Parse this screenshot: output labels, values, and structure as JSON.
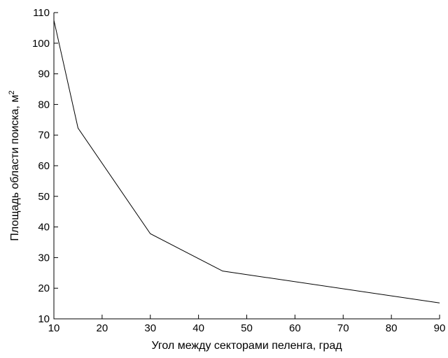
{
  "chart_data": {
    "type": "line",
    "title": "",
    "xlabel": "Угол между секторами пеленга, град",
    "ylabel_main": "Площадь области поиска, м",
    "ylabel_sup": "2",
    "xlim": [
      10,
      90
    ],
    "ylim": [
      10,
      110
    ],
    "xticks": [
      10,
      20,
      30,
      40,
      50,
      60,
      70,
      80,
      90
    ],
    "yticks": [
      10,
      20,
      30,
      40,
      50,
      60,
      70,
      80,
      90,
      100,
      110
    ],
    "grid": false,
    "series": [
      {
        "x": [
          10,
          15,
          30,
          45,
          90
        ],
        "y": [
          107.5,
          72.3,
          37.8,
          25.6,
          15.2
        ]
      }
    ]
  }
}
